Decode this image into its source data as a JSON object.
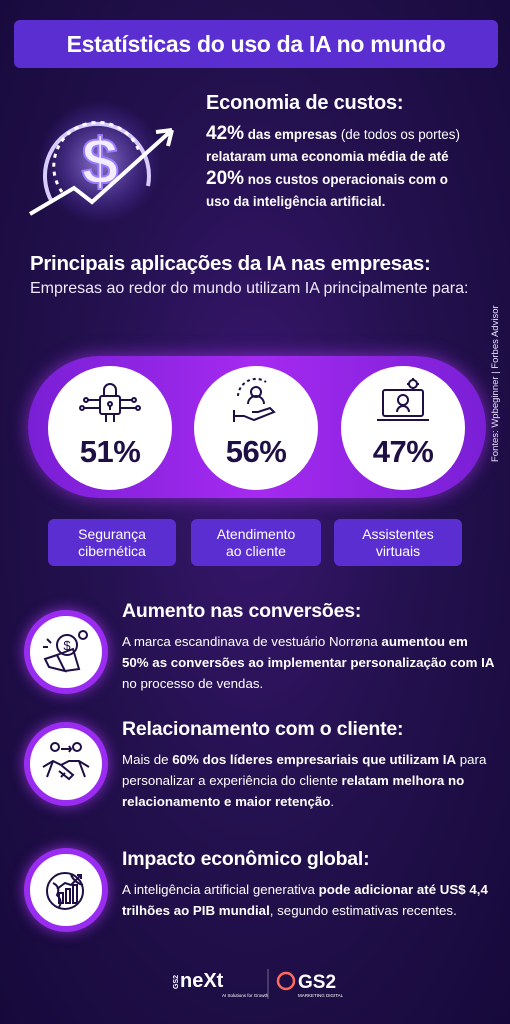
{
  "title": "Estatísticas do uso da IA no mundo",
  "cost": {
    "heading": "Economia de custos:",
    "pct1": "42%",
    "line1": " das empresas",
    "line1b": " (de todos os portes)",
    "line2": "relataram uma economia média de até",
    "pct2": "20%",
    "line3": " nos custos operacionais com o",
    "line4": "uso da inteligência artificial."
  },
  "applications": {
    "title": "Principais aplicações da IA nas empresas:",
    "subtitle": "Empresas ao redor do mundo utilizam IA principalmente para:",
    "items": [
      {
        "pct": "51%",
        "label_l1": "Segurança",
        "label_l2": "cibernética",
        "icon": "lock-circuit-icon"
      },
      {
        "pct": "56%",
        "label_l1": "Atendimento",
        "label_l2": "ao cliente",
        "icon": "customer-care-icon"
      },
      {
        "pct": "47%",
        "label_l1": "Assistentes",
        "label_l2": "virtuais",
        "icon": "laptop-ai-icon"
      }
    ]
  },
  "sources": "Fontes: Wpbeginner | Forbes Advisor",
  "conversions": {
    "heading": "Aumento nas conversões:",
    "t1": "A marca escandinava de vestuário Norrøna ",
    "b1": "aumentou em 50% as conversões ao implementar personalização com IA",
    "t2": " no processo de vendas."
  },
  "relationship": {
    "heading": "Relacionamento com o cliente:",
    "t1": "Mais de ",
    "b1": "60% dos líderes empresariais que utilizam IA",
    "t2": " para personalizar a experiência do cliente ",
    "b2": "relatam melhora no relacionamento e maior retenção",
    "t3": "."
  },
  "impact": {
    "heading": "Impacto econômico global:",
    "t1": "A inteligência artificial generativa ",
    "b1": "pode adicionar até US$ 4,4 trilhões ao PIB mundial",
    "t2": ", segundo estimativas recentes."
  },
  "logos": {
    "next_prefix": "GS2",
    "next": "neXt",
    "next_tag": "AI Solutions for Growth",
    "gs2": "GS2",
    "gs2_tag": "MARKETING DIGITAL"
  }
}
